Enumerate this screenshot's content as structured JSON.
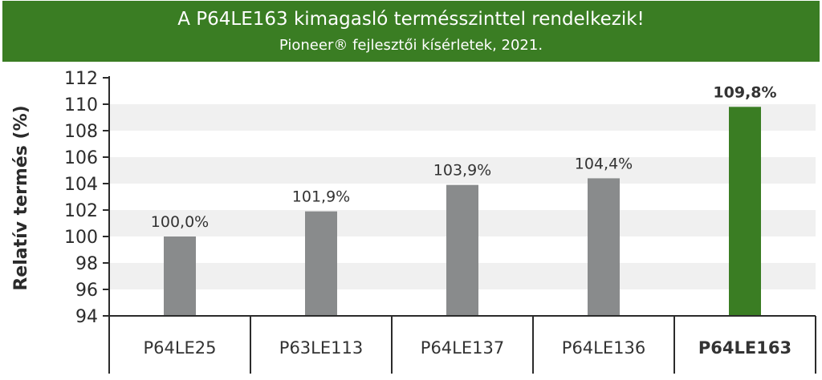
{
  "banner": {
    "title": "A P64LE163 kimagasló termésszinttel rendelkezik!",
    "subtitle": "Pioneer® fejlesztői kísérletek, 2021."
  },
  "colors": {
    "banner_bg": "#3a7d23",
    "bar_default": "#898b8c",
    "bar_highlight": "#3a7d23",
    "band": "#f0f0f0",
    "axis": "#2b2b2b",
    "text": "#333333"
  },
  "chart_data": {
    "type": "bar",
    "title": "A P64LE163 kimagasló termésszinttel rendelkezik!",
    "subtitle": "Pioneer® fejlesztői kísérletek, 2021.",
    "xlabel": "",
    "ylabel": "Relatív termés (%)",
    "ylim": [
      94,
      112
    ],
    "yticks": [
      94,
      96,
      98,
      100,
      102,
      104,
      106,
      108,
      110,
      112
    ],
    "categories": [
      "P64LE25",
      "P63LE113",
      "P64LE137",
      "P64LE136",
      "P64LE163"
    ],
    "values": [
      100.0,
      101.9,
      103.9,
      104.4,
      109.8
    ],
    "value_labels": [
      "100,0%",
      "101,9%",
      "103,9%",
      "104,4%",
      "109,8%"
    ],
    "highlight_index": 4,
    "grid": "alternating horizontal bands",
    "legend": "none"
  }
}
